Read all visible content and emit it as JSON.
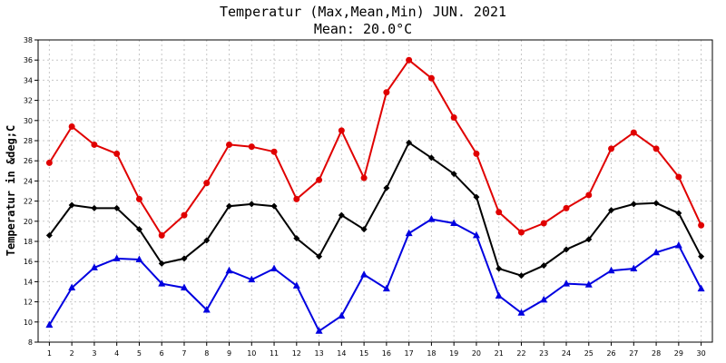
{
  "chart_data": {
    "type": "line",
    "title": "Temperatur (Max,Mean,Min) JUN. 2021",
    "subtitle": "Mean: 20.0°C",
    "xlabel": "",
    "ylabel": "Temperatur in &deg;C",
    "x": [
      1,
      2,
      3,
      4,
      5,
      6,
      7,
      8,
      9,
      10,
      11,
      12,
      13,
      14,
      15,
      16,
      17,
      18,
      19,
      20,
      21,
      22,
      23,
      24,
      25,
      26,
      27,
      28,
      29,
      30
    ],
    "ylim": [
      8,
      38
    ],
    "yticks": [
      8,
      10,
      12,
      14,
      16,
      18,
      20,
      22,
      24,
      26,
      28,
      30,
      32,
      34,
      36,
      38
    ],
    "grid": true,
    "series": [
      {
        "name": "Max",
        "color": "#e00000",
        "marker": "circle",
        "values": [
          25.8,
          29.4,
          27.6,
          26.7,
          22.2,
          18.6,
          20.6,
          23.8,
          27.6,
          27.4,
          26.9,
          22.2,
          24.1,
          29.0,
          24.3,
          32.8,
          36.0,
          34.2,
          30.3,
          26.7,
          20.9,
          18.9,
          19.8,
          21.3,
          22.6,
          27.2,
          28.8,
          27.2,
          24.4,
          19.6
        ]
      },
      {
        "name": "Mean",
        "color": "#000000",
        "marker": "diamond",
        "values": [
          18.6,
          21.6,
          21.3,
          21.3,
          19.2,
          15.8,
          16.3,
          18.1,
          21.5,
          21.7,
          21.5,
          18.3,
          16.5,
          20.6,
          19.2,
          23.3,
          27.8,
          26.3,
          24.7,
          22.4,
          15.3,
          14.6,
          15.6,
          17.2,
          18.2,
          21.1,
          21.7,
          21.8,
          20.8,
          16.5
        ]
      },
      {
        "name": "Min",
        "color": "#0000e0",
        "marker": "triangle",
        "values": [
          9.7,
          13.4,
          15.4,
          16.3,
          16.2,
          13.8,
          13.4,
          11.2,
          15.1,
          14.2,
          15.3,
          13.6,
          9.1,
          10.6,
          14.7,
          13.3,
          18.8,
          20.2,
          19.8,
          18.6,
          12.6,
          10.9,
          12.2,
          13.8,
          13.7,
          15.1,
          15.3,
          16.9,
          17.6,
          13.3
        ]
      }
    ]
  }
}
